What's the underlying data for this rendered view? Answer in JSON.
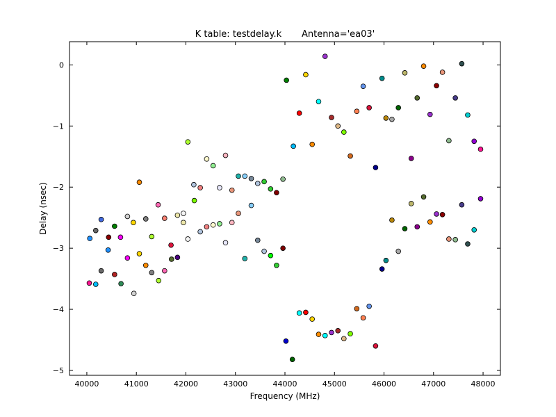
{
  "chart_data": {
    "type": "scatter",
    "title": "K table: testdelay.k       Antenna='ea03'",
    "xlabel": "Frequency (MHz)",
    "ylabel": "Delay (nsec)",
    "xlim": [
      39650,
      48350
    ],
    "ylim": [
      -5.08,
      0.38
    ],
    "x_ticks": [
      40000,
      41000,
      42000,
      43000,
      44000,
      45000,
      46000,
      47000,
      48000
    ],
    "y_ticks": [
      0,
      -1,
      -2,
      -3,
      -4,
      -5
    ],
    "x_tick_labels": [
      "40000",
      "41000",
      "42000",
      "43000",
      "44000",
      "45000",
      "46000",
      "47000",
      "48000"
    ],
    "y_tick_labels": [
      "0",
      "−1",
      "−2",
      "−3",
      "−4",
      "−5"
    ],
    "grid": false,
    "legend": "none",
    "points": [
      {
        "x": 40050,
        "y": -3.57,
        "color": "#ff1493"
      },
      {
        "x": 40180,
        "y": -3.59,
        "color": "#00bfff"
      },
      {
        "x": 40060,
        "y": -2.84,
        "color": "#1e90ff"
      },
      {
        "x": 40180,
        "y": -2.71,
        "color": "#696969"
      },
      {
        "x": 40290,
        "y": -2.53,
        "color": "#4169e1"
      },
      {
        "x": 40290,
        "y": -3.37,
        "color": "#696969"
      },
      {
        "x": 40430,
        "y": -3.03,
        "color": "#1e90ff"
      },
      {
        "x": 40440,
        "y": -2.82,
        "color": "#8b0000"
      },
      {
        "x": 40560,
        "y": -2.64,
        "color": "#008000"
      },
      {
        "x": 40560,
        "y": -3.43,
        "color": "#b22222"
      },
      {
        "x": 40680,
        "y": -2.82,
        "color": "#ff00ff"
      },
      {
        "x": 40690,
        "y": -3.58,
        "color": "#2e8b57"
      },
      {
        "x": 40820,
        "y": -2.48,
        "color": "#d3d3d3"
      },
      {
        "x": 40820,
        "y": -3.16,
        "color": "#ff00ff"
      },
      {
        "x": 40940,
        "y": -2.58,
        "color": "#ffd700"
      },
      {
        "x": 40950,
        "y": -3.74,
        "color": "#d3d3d3"
      },
      {
        "x": 41060,
        "y": -1.92,
        "color": "#ff8c00"
      },
      {
        "x": 41060,
        "y": -3.09,
        "color": "#ffd700"
      },
      {
        "x": 41190,
        "y": -2.52,
        "color": "#808080"
      },
      {
        "x": 41190,
        "y": -3.28,
        "color": "#ff8c00"
      },
      {
        "x": 41310,
        "y": -2.81,
        "color": "#adff2f"
      },
      {
        "x": 41310,
        "y": -3.4,
        "color": "#808080"
      },
      {
        "x": 41440,
        "y": -2.29,
        "color": "#ff69b4"
      },
      {
        "x": 41450,
        "y": -3.53,
        "color": "#adff2f"
      },
      {
        "x": 41570,
        "y": -2.51,
        "color": "#fa8072"
      },
      {
        "x": 41570,
        "y": -3.37,
        "color": "#ff69b4"
      },
      {
        "x": 41700,
        "y": -2.95,
        "color": "#dc143c"
      },
      {
        "x": 41710,
        "y": -3.18,
        "color": "#556b2f"
      },
      {
        "x": 41830,
        "y": -2.46,
        "color": "#eee8aa"
      },
      {
        "x": 41830,
        "y": -3.15,
        "color": "#4b0082"
      },
      {
        "x": 41950,
        "y": -2.43,
        "color": "#f5f5f5"
      },
      {
        "x": 41950,
        "y": -2.58,
        "color": "#eee8aa"
      },
      {
        "x": 42040,
        "y": -1.26,
        "color": "#adff2f"
      },
      {
        "x": 42040,
        "y": -2.85,
        "color": "#f5f5f5"
      },
      {
        "x": 42160,
        "y": -1.96,
        "color": "#b0c4de"
      },
      {
        "x": 42170,
        "y": -2.22,
        "color": "#7cfc00"
      },
      {
        "x": 42290,
        "y": -2.01,
        "color": "#f08080"
      },
      {
        "x": 42290,
        "y": -2.73,
        "color": "#b0c4de"
      },
      {
        "x": 42420,
        "y": -1.54,
        "color": "#fffacd"
      },
      {
        "x": 42420,
        "y": -2.65,
        "color": "#f08080"
      },
      {
        "x": 42550,
        "y": -1.65,
        "color": "#90ee90"
      },
      {
        "x": 42550,
        "y": -2.62,
        "color": "#fffacd"
      },
      {
        "x": 42680,
        "y": -2.01,
        "color": "#e6e6fa"
      },
      {
        "x": 42680,
        "y": -2.6,
        "color": "#90ee90"
      },
      {
        "x": 42800,
        "y": -1.48,
        "color": "#ffb6c1"
      },
      {
        "x": 42800,
        "y": -2.91,
        "color": "#e6e6fa"
      },
      {
        "x": 42930,
        "y": -2.05,
        "color": "#e9967a"
      },
      {
        "x": 42930,
        "y": -2.58,
        "color": "#ffb6c1"
      },
      {
        "x": 43060,
        "y": -1.82,
        "color": "#20b2aa"
      },
      {
        "x": 43060,
        "y": -2.43,
        "color": "#e9967a"
      },
      {
        "x": 43190,
        "y": -1.82,
        "color": "#87cefa"
      },
      {
        "x": 43190,
        "y": -3.17,
        "color": "#20b2aa"
      },
      {
        "x": 43320,
        "y": -1.86,
        "color": "#778899"
      },
      {
        "x": 43320,
        "y": -2.3,
        "color": "#87cefa"
      },
      {
        "x": 43450,
        "y": -1.94,
        "color": "#b0c4de"
      },
      {
        "x": 43450,
        "y": -2.87,
        "color": "#778899"
      },
      {
        "x": 43580,
        "y": -1.91,
        "color": "#32cd32"
      },
      {
        "x": 43580,
        "y": -3.05,
        "color": "#b0c4de"
      },
      {
        "x": 43710,
        "y": -2.03,
        "color": "#32cd32"
      },
      {
        "x": 43710,
        "y": -3.12,
        "color": "#00ff00"
      },
      {
        "x": 43830,
        "y": -2.09,
        "color": "#800000"
      },
      {
        "x": 43830,
        "y": -3.28,
        "color": "#32cd32"
      },
      {
        "x": 43960,
        "y": -1.87,
        "color": "#8fbc8f"
      },
      {
        "x": 43960,
        "y": -3.0,
        "color": "#800000"
      },
      {
        "x": 44030,
        "y": -0.25,
        "color": "#008000"
      },
      {
        "x": 44020,
        "y": -4.52,
        "color": "#0000cd"
      },
      {
        "x": 44150,
        "y": -4.82,
        "color": "#006400"
      },
      {
        "x": 44170,
        "y": -1.33,
        "color": "#00bfff"
      },
      {
        "x": 44290,
        "y": -0.79,
        "color": "#ff0000"
      },
      {
        "x": 44290,
        "y": -4.06,
        "color": "#00ffff"
      },
      {
        "x": 44420,
        "y": -0.16,
        "color": "#ffd700"
      },
      {
        "x": 44420,
        "y": -4.05,
        "color": "#ff0000"
      },
      {
        "x": 44550,
        "y": -1.3,
        "color": "#ff8c00"
      },
      {
        "x": 44550,
        "y": -4.16,
        "color": "#ffd700"
      },
      {
        "x": 44680,
        "y": -0.6,
        "color": "#00ffff"
      },
      {
        "x": 44680,
        "y": -4.41,
        "color": "#ff8c00"
      },
      {
        "x": 44810,
        "y": 0.14,
        "color": "#9932cc"
      },
      {
        "x": 44810,
        "y": -4.43,
        "color": "#00ffff"
      },
      {
        "x": 44940,
        "y": -0.86,
        "color": "#a52a2a"
      },
      {
        "x": 44940,
        "y": -4.38,
        "color": "#9932cc"
      },
      {
        "x": 45070,
        "y": -1.0,
        "color": "#deb887"
      },
      {
        "x": 45070,
        "y": -4.35,
        "color": "#a52a2a"
      },
      {
        "x": 45190,
        "y": -1.1,
        "color": "#7fff00"
      },
      {
        "x": 45190,
        "y": -4.48,
        "color": "#deb887"
      },
      {
        "x": 45320,
        "y": -1.49,
        "color": "#d2691e"
      },
      {
        "x": 45320,
        "y": -4.4,
        "color": "#7fff00"
      },
      {
        "x": 45450,
        "y": -0.76,
        "color": "#ff7f50"
      },
      {
        "x": 45450,
        "y": -3.99,
        "color": "#d2691e"
      },
      {
        "x": 45580,
        "y": -0.35,
        "color": "#6495ed"
      },
      {
        "x": 45580,
        "y": -4.14,
        "color": "#ff7f50"
      },
      {
        "x": 45700,
        "y": -0.7,
        "color": "#dc143c"
      },
      {
        "x": 45700,
        "y": -3.95,
        "color": "#6495ed"
      },
      {
        "x": 45830,
        "y": -1.68,
        "color": "#00008b"
      },
      {
        "x": 45830,
        "y": -4.6,
        "color": "#dc143c"
      },
      {
        "x": 45960,
        "y": -0.22,
        "color": "#008b8b"
      },
      {
        "x": 45960,
        "y": -3.34,
        "color": "#00008b"
      },
      {
        "x": 46040,
        "y": -0.87,
        "color": "#b8860b"
      },
      {
        "x": 46040,
        "y": -3.2,
        "color": "#008b8b"
      },
      {
        "x": 46160,
        "y": -0.89,
        "color": "#a9a9a9"
      },
      {
        "x": 46160,
        "y": -2.54,
        "color": "#b8860b"
      },
      {
        "x": 46290,
        "y": -0.7,
        "color": "#006400"
      },
      {
        "x": 46290,
        "y": -3.05,
        "color": "#a9a9a9"
      },
      {
        "x": 46420,
        "y": -0.13,
        "color": "#bdb76b"
      },
      {
        "x": 46420,
        "y": -2.68,
        "color": "#006400"
      },
      {
        "x": 46550,
        "y": -1.53,
        "color": "#8b008b"
      },
      {
        "x": 46550,
        "y": -2.27,
        "color": "#bdb76b"
      },
      {
        "x": 46670,
        "y": -0.54,
        "color": "#556b2f"
      },
      {
        "x": 46670,
        "y": -2.65,
        "color": "#8b008b"
      },
      {
        "x": 46800,
        "y": -0.02,
        "color": "#ff8c00"
      },
      {
        "x": 46800,
        "y": -2.16,
        "color": "#556b2f"
      },
      {
        "x": 46930,
        "y": -0.81,
        "color": "#9932cc"
      },
      {
        "x": 46930,
        "y": -2.57,
        "color": "#ff8c00"
      },
      {
        "x": 47060,
        "y": -0.34,
        "color": "#8b0000"
      },
      {
        "x": 47060,
        "y": -2.44,
        "color": "#9932cc"
      },
      {
        "x": 47180,
        "y": -0.12,
        "color": "#e9967a"
      },
      {
        "x": 47180,
        "y": -2.45,
        "color": "#8b0000"
      },
      {
        "x": 47310,
        "y": -1.24,
        "color": "#8fbc8f"
      },
      {
        "x": 47310,
        "y": -2.85,
        "color": "#e9967a"
      },
      {
        "x": 47440,
        "y": -0.54,
        "color": "#483d8b"
      },
      {
        "x": 47440,
        "y": -2.86,
        "color": "#8fbc8f"
      },
      {
        "x": 47570,
        "y": 0.02,
        "color": "#2f4f4f"
      },
      {
        "x": 47570,
        "y": -2.29,
        "color": "#483d8b"
      },
      {
        "x": 47690,
        "y": -0.82,
        "color": "#00ced1"
      },
      {
        "x": 47690,
        "y": -2.93,
        "color": "#2f4f4f"
      },
      {
        "x": 47820,
        "y": -1.25,
        "color": "#9400d3"
      },
      {
        "x": 47820,
        "y": -2.7,
        "color": "#00ced1"
      },
      {
        "x": 47950,
        "y": -1.38,
        "color": "#ff1493"
      },
      {
        "x": 47950,
        "y": -2.19,
        "color": "#9400d3"
      }
    ]
  }
}
